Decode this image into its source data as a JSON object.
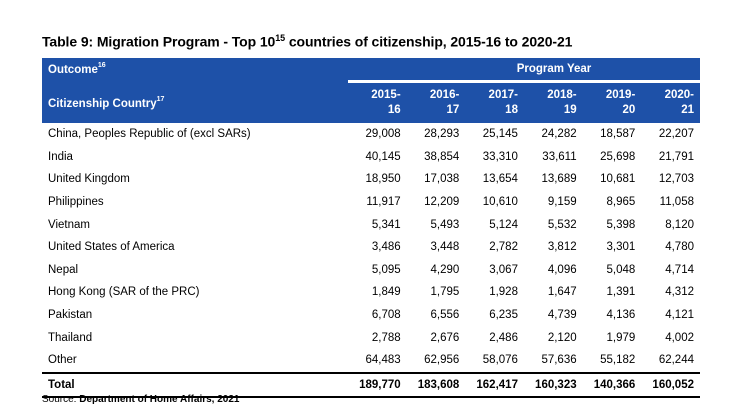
{
  "title": {
    "text": "Table 9: Migration Program - Top 10",
    "sup": "15",
    "rest": " countries of citizenship, 2015-16 to 2020-21"
  },
  "header": {
    "outcome": "Outcome",
    "outcome_sup": "16",
    "program_year": "Program Year",
    "citizenship_country": "Citizenship Country",
    "citizenship_sup": "17",
    "years": [
      {
        "a": "2015-",
        "b": "16"
      },
      {
        "a": "2016-",
        "b": "17"
      },
      {
        "a": "2017-",
        "b": "18"
      },
      {
        "a": "2018-",
        "b": "19"
      },
      {
        "a": "2019-",
        "b": "20"
      },
      {
        "a": "2020-",
        "b": "21"
      }
    ]
  },
  "rows": [
    {
      "country": "China, Peoples Republic of (excl SARs)",
      "v": [
        "29,008",
        "28,293",
        "25,145",
        "24,282",
        "18,587",
        "22,207"
      ]
    },
    {
      "country": "India",
      "v": [
        "40,145",
        "38,854",
        "33,310",
        "33,611",
        "25,698",
        "21,791"
      ]
    },
    {
      "country": "United Kingdom",
      "v": [
        "18,950",
        "17,038",
        "13,654",
        "13,689",
        "10,681",
        "12,703"
      ]
    },
    {
      "country": "Philippines",
      "v": [
        "11,917",
        "12,209",
        "10,610",
        "9,159",
        "8,965",
        "11,058"
      ]
    },
    {
      "country": "Vietnam",
      "v": [
        "5,341",
        "5,493",
        "5,124",
        "5,532",
        "5,398",
        "8,120"
      ]
    },
    {
      "country": "United States of America",
      "v": [
        "3,486",
        "3,448",
        "2,782",
        "3,812",
        "3,301",
        "4,780"
      ]
    },
    {
      "country": "Nepal",
      "v": [
        "5,095",
        "4,290",
        "3,067",
        "4,096",
        "5,048",
        "4,714"
      ]
    },
    {
      "country": "Hong Kong (SAR of the PRC)",
      "v": [
        "1,849",
        "1,795",
        "1,928",
        "1,647",
        "1,391",
        "4,312"
      ]
    },
    {
      "country": "Pakistan",
      "v": [
        "6,708",
        "6,556",
        "6,235",
        "4,739",
        "4,136",
        "4,121"
      ]
    },
    {
      "country": "Thailand",
      "v": [
        "2,788",
        "2,676",
        "2,486",
        "2,120",
        "1,979",
        "4,002"
      ]
    },
    {
      "country": "Other",
      "v": [
        "64,483",
        "62,956",
        "58,076",
        "57,636",
        "55,182",
        "62,244"
      ]
    }
  ],
  "total": {
    "label": "Total",
    "v": [
      "189,770",
      "183,608",
      "162,417",
      "160,323",
      "140,366",
      "160,052"
    ]
  },
  "source": {
    "prefix": "Source: ",
    "text": "Department of Home Affairs, 2021"
  },
  "colors": {
    "header_bg": "#1e51a8",
    "header_text": "#ffffff"
  }
}
